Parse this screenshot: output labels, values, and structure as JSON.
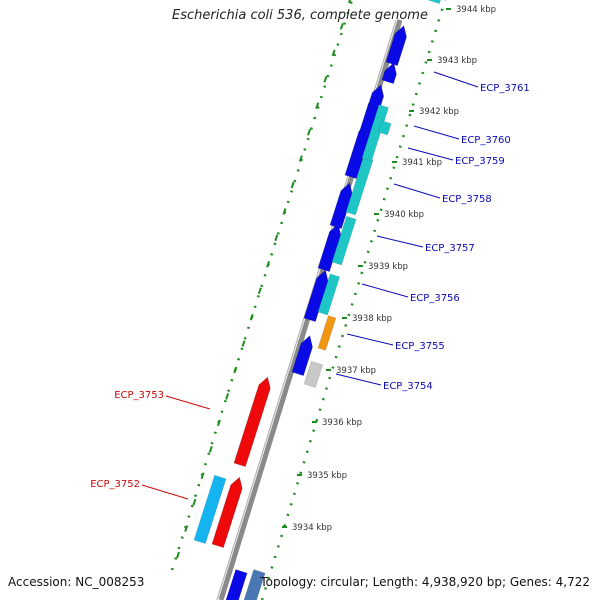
{
  "title": "Escherichia coli 536, complete genome",
  "footer": {
    "accession": "Accession: NC_008253",
    "summary": "Topology: circular; Length: 4,938,920 bp; Genes: 4,722"
  },
  "colors": {
    "forward_cds": "#0a0ae6",
    "reverse_cds": "#ee0a0a",
    "cyan_track": "#1fc6c6",
    "light_blue_track": "#14b4f0",
    "orange_feature": "#f09610",
    "gray_feature": "#c8c8c8",
    "steel_blue_feature": "#4a78b4",
    "backbone": "#8a8a8a",
    "forward_label": "#0a0ab4",
    "reverse_label": "#c80a0a",
    "tick": "#1e8c1e"
  },
  "ticks": [
    {
      "label": "3944 kbp"
    },
    {
      "label": "3943 kbp"
    },
    {
      "label": "3942 kbp"
    },
    {
      "label": "3941 kbp"
    },
    {
      "label": "3940 kbp"
    },
    {
      "label": "3939 kbp"
    },
    {
      "label": "3938 kbp"
    },
    {
      "label": "3937 kbp"
    },
    {
      "label": "3936 kbp"
    },
    {
      "label": "3935 kbp"
    },
    {
      "label": "3934 kbp"
    }
  ],
  "gene_labels_forward": [
    "ECP_3761",
    "ECP_3760",
    "ECP_3759",
    "ECP_3758",
    "ECP_3757",
    "ECP_3756",
    "ECP_3755",
    "ECP_3754"
  ],
  "gene_labels_reverse": [
    "ECP_3753",
    "ECP_3752"
  ]
}
